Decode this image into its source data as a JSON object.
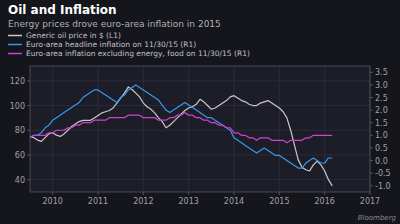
{
  "chart_data": {
    "type": "line",
    "title": "Oil and Inflation",
    "subtitle": "Energy prices drove euro-area inflation in 2015",
    "annotations": [
      "Bloomberg"
    ],
    "grid": true,
    "legend": "upper left",
    "x": [
      2009.5,
      2009.583333,
      2009.666667,
      2009.75,
      2009.833333,
      2009.916667,
      2010,
      2010.083333,
      2010.166667,
      2010.25,
      2010.333333,
      2010.416667,
      2010.5,
      2010.583333,
      2010.666667,
      2010.75,
      2010.833333,
      2010.916667,
      2011,
      2011.083333,
      2011.166667,
      2011.25,
      2011.333333,
      2011.416667,
      2011.5,
      2011.583333,
      2011.666667,
      2011.75,
      2011.833333,
      2011.916667,
      2012,
      2012.083333,
      2012.166667,
      2012.25,
      2012.333333,
      2012.416667,
      2012.5,
      2012.583333,
      2012.666667,
      2012.75,
      2012.833333,
      2012.916667,
      2013,
      2013.083333,
      2013.166667,
      2013.25,
      2013.333333,
      2013.416667,
      2013.5,
      2013.583333,
      2013.666667,
      2013.75,
      2013.833333,
      2013.916667,
      2014,
      2014.083333,
      2014.166667,
      2014.25,
      2014.333333,
      2014.416667,
      2014.5,
      2014.583333,
      2014.666667,
      2014.75,
      2014.833333,
      2014.916667,
      2015,
      2015.083333,
      2015.166667,
      2015.25,
      2015.333333,
      2015.416667,
      2015.5,
      2015.583333,
      2015.666667,
      2015.75,
      2015.833333,
      2015.916667,
      2016,
      2016.083333,
      2016.166667
    ],
    "xlim": [
      2009.5,
      2017
    ],
    "xticks": [
      2010,
      2011,
      2012,
      2013,
      2014,
      2015,
      2016,
      2017
    ],
    "ylim": [
      30,
      132
    ],
    "yticks": [
      40,
      60,
      80,
      100,
      120
    ],
    "y2lim": [
      -1.25,
      3.75
    ],
    "y2ticks": [
      {
        "value": -1.0,
        "label": "-1.0"
      },
      {
        "value": -0.5,
        "label": "-0.5"
      },
      {
        "value": 0.0,
        "label": "0.0"
      },
      {
        "value": 0.5,
        "label": "0.5"
      },
      {
        "value": 1.0,
        "label": "1.0"
      },
      {
        "value": 1.5,
        "label": "1.5"
      },
      {
        "value": 2.0,
        "label": "2.0"
      },
      {
        "value": 2.5,
        "label": "2.5"
      },
      {
        "value": 3.0,
        "label": "3.0"
      },
      {
        "value": 3.5,
        "label": "3.5"
      }
    ],
    "series": [
      {
        "name": "Generic oil price in $ (L1)",
        "color": "#c8c8c8",
        "values": [
          75,
          74,
          72,
          71,
          74,
          77,
          78,
          76,
          75,
          77,
          80,
          83,
          85,
          87,
          88,
          88,
          88,
          90,
          92,
          94,
          95,
          96,
          98,
          102,
          106,
          110,
          115,
          113,
          110,
          107,
          102,
          99,
          97,
          94,
          90,
          87,
          82,
          84,
          87,
          90,
          93,
          96,
          98,
          99,
          101,
          105,
          103,
          100,
          97,
          98,
          100,
          102,
          104,
          107,
          108,
          106,
          104,
          103,
          101,
          100,
          100,
          102,
          103,
          104,
          102,
          100,
          98,
          95,
          90,
          80,
          68,
          56,
          50,
          48,
          47,
          52,
          55,
          52,
          47,
          40,
          35
        ]
      },
      {
        "name": "Euro-area headline inflation on 11/30/15 (R1)",
        "color": "#3399ee",
        "axis": "y2",
        "values": [
          0.9,
          1.0,
          1.0,
          1.1,
          1.3,
          1.4,
          1.6,
          1.7,
          1.8,
          1.9,
          2.0,
          2.1,
          2.2,
          2.3,
          2.5,
          2.6,
          2.7,
          2.8,
          2.8,
          2.7,
          2.6,
          2.5,
          2.4,
          2.3,
          2.5,
          2.6,
          2.8,
          2.9,
          3.0,
          2.9,
          2.8,
          2.7,
          2.6,
          2.5,
          2.4,
          2.2,
          2.0,
          1.9,
          2.0,
          2.1,
          2.2,
          2.3,
          2.2,
          2.1,
          2.0,
          1.9,
          1.8,
          1.7,
          1.7,
          1.6,
          1.5,
          1.4,
          1.3,
          1.2,
          0.9,
          0.8,
          0.7,
          0.6,
          0.5,
          0.4,
          0.3,
          0.4,
          0.5,
          0.4,
          0.3,
          0.2,
          0.2,
          0.1,
          0.0,
          -0.1,
          -0.2,
          -0.3,
          -0.3,
          -0.1,
          0.0,
          0.1,
          0.0,
          -0.1,
          -0.1,
          0.1,
          0.1
        ]
      },
      {
        "name": "Euro-area inflation excluding energy, food on 11/30/15 (R1)",
        "color": "#cc44cc",
        "axis": "y2",
        "values": [
          0.9,
          1.0,
          1.0,
          1.0,
          1.0,
          1.1,
          1.1,
          1.2,
          1.2,
          1.2,
          1.3,
          1.3,
          1.4,
          1.4,
          1.5,
          1.5,
          1.5,
          1.6,
          1.6,
          1.6,
          1.6,
          1.7,
          1.7,
          1.7,
          1.7,
          1.7,
          1.8,
          1.8,
          1.8,
          1.8,
          1.7,
          1.7,
          1.7,
          1.7,
          1.6,
          1.6,
          1.6,
          1.7,
          1.7,
          1.8,
          1.8,
          1.9,
          1.8,
          1.8,
          1.7,
          1.7,
          1.6,
          1.6,
          1.5,
          1.5,
          1.4,
          1.4,
          1.3,
          1.3,
          1.1,
          1.1,
          1.0,
          1.0,
          0.9,
          0.9,
          0.8,
          0.9,
          0.9,
          0.9,
          0.8,
          0.8,
          0.8,
          0.8,
          0.7,
          0.8,
          0.8,
          0.8,
          0.8,
          0.9,
          0.9,
          1.0,
          1.0,
          1.0,
          1.0,
          1.0,
          1.0
        ]
      }
    ]
  }
}
